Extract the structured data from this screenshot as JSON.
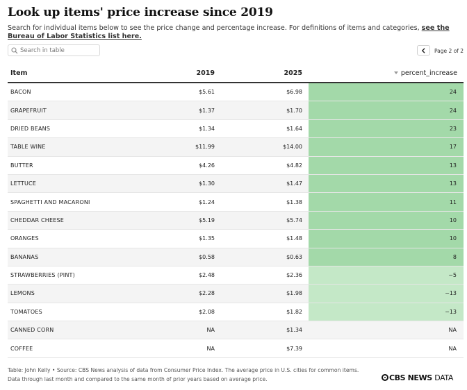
{
  "title": "Look up items' price increase since 2019",
  "subtitle_text": "Search for individual items below to see the price change and percentage increase. For definitions of items and categories, ",
  "subtitle_link": "see the Bureau of Labor Statistics list here.",
  "search": {
    "placeholder": "Search in table"
  },
  "pager": {
    "label": "Page 2 of 2"
  },
  "columns": {
    "item": "Item",
    "y2019": "2019",
    "y2025": "2025",
    "pct": "percent_increase"
  },
  "rows": [
    {
      "item": "BACON",
      "y2019": "$5.61",
      "y2025": "$6.98",
      "pct": "24",
      "pct_value": 24
    },
    {
      "item": "GRAPEFRUIT",
      "y2019": "$1.37",
      "y2025": "$1.70",
      "pct": "24",
      "pct_value": 24
    },
    {
      "item": "DRIED BEANS",
      "y2019": "$1.34",
      "y2025": "$1.64",
      "pct": "23",
      "pct_value": 23
    },
    {
      "item": "TABLE WINE",
      "y2019": "$11.99",
      "y2025": "$14.00",
      "pct": "17",
      "pct_value": 17
    },
    {
      "item": "BUTTER",
      "y2019": "$4.26",
      "y2025": "$4.82",
      "pct": "13",
      "pct_value": 13
    },
    {
      "item": "LETTUCE",
      "y2019": "$1.30",
      "y2025": "$1.47",
      "pct": "13",
      "pct_value": 13
    },
    {
      "item": "SPAGHETTI AND MACARONI",
      "y2019": "$1.24",
      "y2025": "$1.38",
      "pct": "11",
      "pct_value": 11
    },
    {
      "item": "CHEDDAR CHEESE",
      "y2019": "$5.19",
      "y2025": "$5.74",
      "pct": "10",
      "pct_value": 10
    },
    {
      "item": "ORANGES",
      "y2019": "$1.35",
      "y2025": "$1.48",
      "pct": "10",
      "pct_value": 10
    },
    {
      "item": "BANANAS",
      "y2019": "$0.58",
      "y2025": "$0.63",
      "pct": "8",
      "pct_value": 8
    },
    {
      "item": "STRAWBERRIES (PINT)",
      "y2019": "$2.48",
      "y2025": "$2.36",
      "pct": "−5",
      "pct_value": -5
    },
    {
      "item": "LEMONS",
      "y2019": "$2.28",
      "y2025": "$1.98",
      "pct": "−13",
      "pct_value": -13
    },
    {
      "item": "TOMATOES",
      "y2019": "$2.08",
      "y2025": "$1.82",
      "pct": "−13",
      "pct_value": -13
    },
    {
      "item": "CANNED CORN",
      "y2019": "NA",
      "y2025": "$1.34",
      "pct": "NA",
      "pct_value": null
    },
    {
      "item": "COFFEE",
      "y2019": "NA",
      "y2025": "$7.39",
      "pct": "NA",
      "pct_value": null
    }
  ],
  "colors": {
    "pct_high": "#a3d9a9",
    "pct_low": "#c4e8c7",
    "header_rule": "#333333",
    "stripe": "#f4f4f4"
  },
  "icons": {
    "search": "search-icon",
    "prev": "chevron-left-icon"
  },
  "footer": {
    "line1": "Table: John Kelly • Source: CBS News analysis of data from Consumer Price Index. The average price in U.S. cities for common items.",
    "line2": "Data through last month and compared to the same month of prior years based on average price."
  },
  "brand": {
    "name": "CBS NEWS",
    "suffix": "DATA"
  }
}
